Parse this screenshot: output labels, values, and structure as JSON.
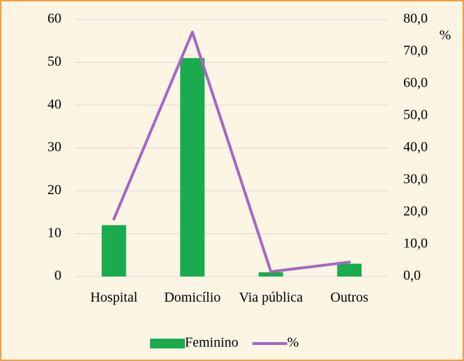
{
  "chart_data": {
    "type": "bar_line",
    "categories": [
      "Hospital",
      "Domicílio",
      "Via pública",
      "Outros"
    ],
    "series": [
      {
        "name": "Feminino",
        "type": "bar",
        "color": "#1aab4f",
        "values": [
          12,
          51,
          1,
          3
        ]
      },
      {
        "name": "%",
        "type": "line",
        "axis": "y2",
        "color": "#a866c4",
        "values": [
          17.9,
          76.1,
          1.5,
          4.5
        ]
      }
    ],
    "ylim": [
      0,
      60
    ],
    "yticks": [
      0,
      10,
      20,
      30,
      40,
      50,
      60
    ],
    "y2lim": [
      0,
      80
    ],
    "y2ticks": [
      {
        "value": 0,
        "label": "0,0"
      },
      {
        "value": 10,
        "label": "10,0"
      },
      {
        "value": 20,
        "label": "20,0"
      },
      {
        "value": 30,
        "label": "30,0"
      },
      {
        "value": 40,
        "label": "40,0"
      },
      {
        "value": 50,
        "label": "50,0"
      },
      {
        "value": 60,
        "label": "60,0"
      },
      {
        "value": 70,
        "label": "70,0"
      },
      {
        "value": 80,
        "label": "80,0"
      }
    ],
    "y2_label": "%",
    "grid": true
  }
}
